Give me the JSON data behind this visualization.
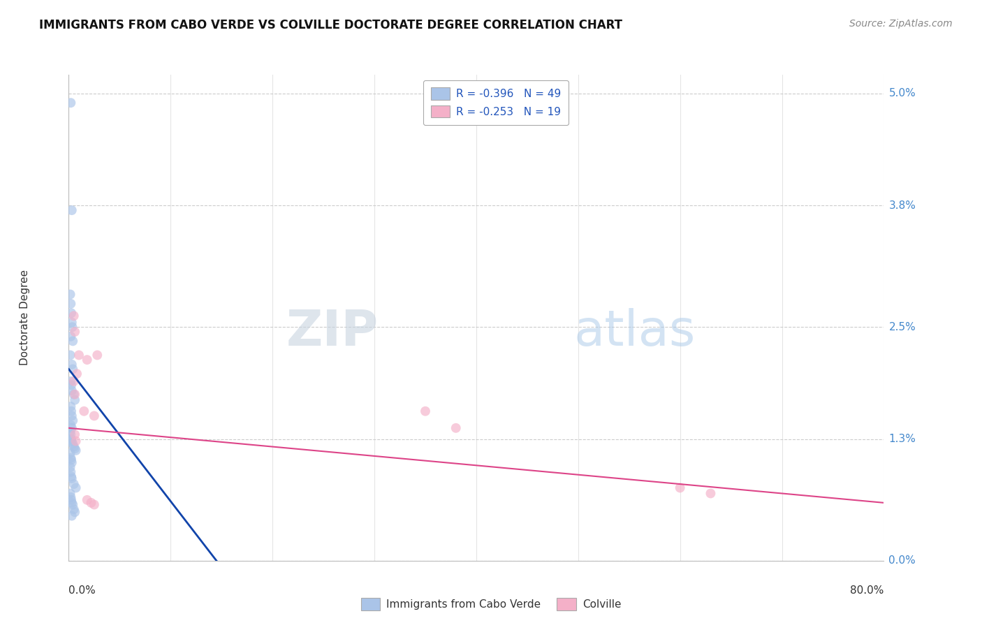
{
  "title": "IMMIGRANTS FROM CABO VERDE VS COLVILLE DOCTORATE DEGREE CORRELATION CHART",
  "source": "Source: ZipAtlas.com",
  "ylabel": "Doctorate Degree",
  "ytick_vals": [
    0.0,
    1.3,
    2.5,
    3.8,
    5.0
  ],
  "ytick_labels": [
    "0.0%",
    "1.3%",
    "2.5%",
    "3.8%",
    "5.0%"
  ],
  "xtick_vals": [
    0.0,
    10.0,
    20.0,
    30.0,
    40.0,
    50.0,
    60.0,
    70.0,
    80.0
  ],
  "xlim": [
    0.0,
    80.0
  ],
  "ylim": [
    0.0,
    5.2
  ],
  "legend_blue_label": "R = -0.396   N = 49",
  "legend_pink_label": "R = -0.253   N = 19",
  "bottom_legend_blue": "Immigrants from Cabo Verde",
  "bottom_legend_pink": "Colville",
  "watermark_zip": "ZIP",
  "watermark_atlas": "atlas",
  "blue_scatter": [
    [
      0.2,
      4.9
    ],
    [
      0.3,
      3.75
    ],
    [
      0.15,
      2.85
    ],
    [
      0.2,
      2.75
    ],
    [
      0.25,
      2.65
    ],
    [
      0.3,
      2.55
    ],
    [
      0.35,
      2.5
    ],
    [
      0.2,
      2.4
    ],
    [
      0.4,
      2.35
    ],
    [
      0.15,
      2.2
    ],
    [
      0.3,
      2.1
    ],
    [
      0.4,
      2.05
    ],
    [
      0.2,
      1.92
    ],
    [
      0.25,
      1.88
    ],
    [
      0.3,
      1.82
    ],
    [
      0.5,
      1.78
    ],
    [
      0.6,
      1.72
    ],
    [
      0.2,
      1.65
    ],
    [
      0.25,
      1.6
    ],
    [
      0.3,
      1.55
    ],
    [
      0.4,
      1.5
    ],
    [
      0.2,
      1.45
    ],
    [
      0.3,
      1.42
    ],
    [
      0.15,
      1.38
    ],
    [
      0.2,
      1.35
    ],
    [
      0.25,
      1.3
    ],
    [
      0.3,
      1.28
    ],
    [
      0.4,
      1.25
    ],
    [
      0.5,
      1.22
    ],
    [
      0.6,
      1.2
    ],
    [
      0.7,
      1.18
    ],
    [
      0.15,
      1.15
    ],
    [
      0.2,
      1.1
    ],
    [
      0.25,
      1.08
    ],
    [
      0.3,
      1.05
    ],
    [
      0.15,
      1.0
    ],
    [
      0.2,
      0.95
    ],
    [
      0.25,
      0.9
    ],
    [
      0.3,
      0.88
    ],
    [
      0.5,
      0.82
    ],
    [
      0.7,
      0.78
    ],
    [
      0.15,
      0.72
    ],
    [
      0.2,
      0.68
    ],
    [
      0.25,
      0.65
    ],
    [
      0.3,
      0.62
    ],
    [
      0.4,
      0.6
    ],
    [
      0.5,
      0.55
    ],
    [
      0.6,
      0.52
    ],
    [
      0.3,
      0.48
    ]
  ],
  "pink_scatter": [
    [
      0.5,
      2.62
    ],
    [
      0.6,
      2.45
    ],
    [
      1.0,
      2.2
    ],
    [
      1.8,
      2.15
    ],
    [
      0.5,
      1.92
    ],
    [
      0.6,
      1.78
    ],
    [
      0.8,
      2.0
    ],
    [
      1.5,
      1.6
    ],
    [
      2.5,
      1.55
    ],
    [
      0.6,
      1.35
    ],
    [
      0.7,
      1.28
    ],
    [
      2.8,
      2.2
    ],
    [
      35.0,
      1.6
    ],
    [
      38.0,
      1.42
    ],
    [
      60.0,
      0.78
    ],
    [
      63.0,
      0.72
    ],
    [
      1.8,
      0.65
    ],
    [
      2.2,
      0.62
    ],
    [
      2.5,
      0.6
    ]
  ],
  "blue_line": {
    "x0": 0.0,
    "y0": 2.05,
    "x1": 14.5,
    "y1": 0.0
  },
  "pink_line": {
    "x0": 0.0,
    "y0": 1.42,
    "x1": 80.0,
    "y1": 0.62
  },
  "blue_color": "#aac4e8",
  "blue_line_color": "#1144aa",
  "pink_color": "#f4b0c8",
  "pink_line_color": "#dd4488",
  "scatter_alpha": 0.65,
  "scatter_size": 100
}
